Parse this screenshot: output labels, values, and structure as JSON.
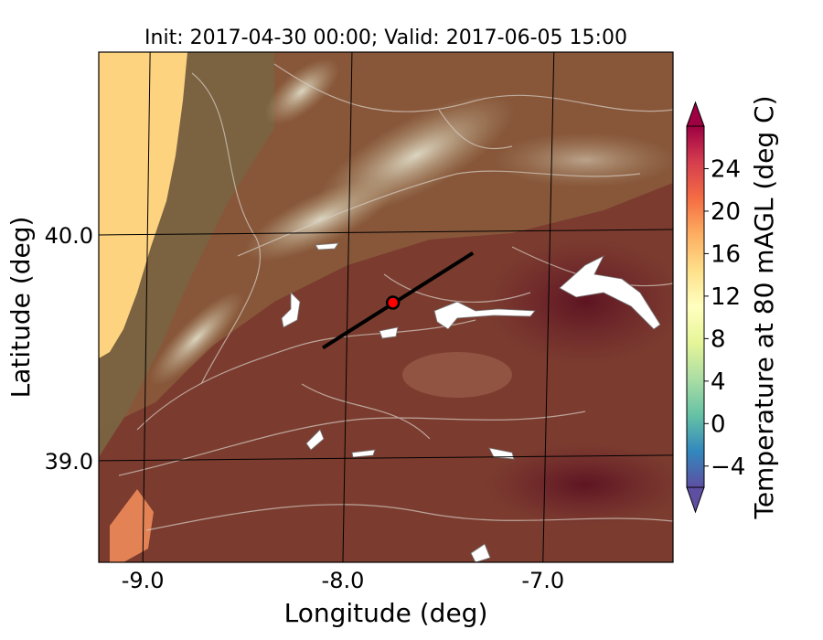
{
  "title": "Init: 2017-04-30 00:00; Valid: 2017-06-05 15:00",
  "map": {
    "xlabel": "Longitude (deg)",
    "ylabel": "Latitude (deg)",
    "lon_range": [
      -9.22,
      -6.35
    ],
    "lat_range": [
      38.55,
      40.81
    ],
    "x_ticks": [
      {
        "value": -9.0,
        "label": "-9.0"
      },
      {
        "value": -8.0,
        "label": "-8.0"
      },
      {
        "value": -7.0,
        "label": "-7.0"
      }
    ],
    "y_ticks": [
      {
        "value": 40.0,
        "label": "40.0"
      },
      {
        "value": 39.0,
        "label": "39.0"
      }
    ],
    "grid": true,
    "transect_line": {
      "start": {
        "lon": -8.1,
        "lat": 39.5
      },
      "end": {
        "lon": -7.35,
        "lat": 39.92
      }
    },
    "marker": {
      "lon": -7.75,
      "lat": 39.7,
      "color": "#ff0000"
    },
    "ocean_color": "#fdd380",
    "land_colors": {
      "coast": "#7a6340",
      "highland": "#c8b890",
      "interior": "#7a3a30",
      "hot": "#6a1a2a"
    }
  },
  "colorbar": {
    "label": "Temperature at 80 mAGL (deg C)",
    "vmin": -6,
    "vmax": 28,
    "extend": "both",
    "ticks": [
      {
        "value": -4,
        "label": "−4"
      },
      {
        "value": 0,
        "label": "0"
      },
      {
        "value": 4,
        "label": "4"
      },
      {
        "value": 8,
        "label": "8"
      },
      {
        "value": 12,
        "label": "12"
      },
      {
        "value": 16,
        "label": "16"
      },
      {
        "value": 20,
        "label": "20"
      },
      {
        "value": 24,
        "label": "24"
      }
    ],
    "colors": [
      "#5e4fa2",
      "#3288bd",
      "#66c2a5",
      "#abdda4",
      "#e6f598",
      "#ffffbf",
      "#fee08b",
      "#fdae61",
      "#f46d43",
      "#d53e4f",
      "#9e0142"
    ]
  }
}
